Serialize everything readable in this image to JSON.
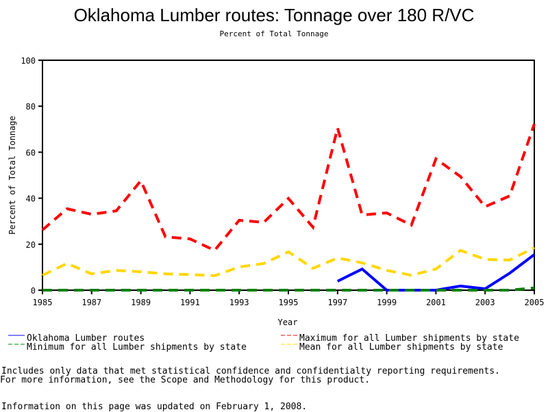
{
  "chart_data": {
    "type": "line",
    "title": "Oklahoma Lumber routes: Tonnage over 180 R/VC",
    "subtitle": "Percent of Total Tonnage",
    "xlabel": "Year",
    "ylabel": "Percent of Total Tonnage",
    "xlim": [
      1985,
      2005
    ],
    "ylim": [
      0,
      100
    ],
    "xticks": [
      "1985",
      "1987",
      "1989",
      "1991",
      "1993",
      "1995",
      "1997",
      "1999",
      "2001",
      "2003",
      "2005"
    ],
    "yticks": [
      "0",
      "20",
      "40",
      "60",
      "80",
      "100"
    ],
    "x": [
      1985,
      1986,
      1987,
      1988,
      1989,
      1990,
      1991,
      1992,
      1993,
      1994,
      1995,
      1996,
      1997,
      1998,
      1999,
      2000,
      2001,
      2002,
      2003,
      2004,
      2005
    ],
    "series": [
      {
        "name": "Oklahoma Lumber routes",
        "color": "#0000ff",
        "dash": false,
        "values": [
          null,
          null,
          null,
          null,
          null,
          null,
          null,
          null,
          null,
          null,
          null,
          null,
          3.9,
          9.2,
          0,
          0,
          0,
          1.8,
          0.6,
          7.4,
          15.5
        ]
      },
      {
        "name": "Maximum for all Lumber shipments by state",
        "color": "#ff0000",
        "dash": true,
        "values": [
          26.2,
          35.4,
          33,
          34.5,
          47.6,
          23.2,
          22.3,
          17.3,
          30.4,
          29.5,
          39.9,
          27.4,
          70.5,
          32.7,
          33.6,
          28.3,
          57.1,
          49.4,
          36.3,
          41,
          72.3
        ]
      },
      {
        "name": "Minimum for all Lumber shipments by state",
        "color": "#008000",
        "dash": true,
        "values": [
          0,
          0,
          0,
          0,
          0,
          0,
          0,
          0,
          0,
          0,
          0,
          0,
          0,
          0,
          0,
          0,
          0,
          0,
          0,
          0,
          1
        ]
      },
      {
        "name": "Mean for all Lumber shipments by state",
        "color": "#ffd700",
        "dash": true,
        "values": [
          6.5,
          11.6,
          7.1,
          8.6,
          8,
          7.1,
          6.8,
          6.3,
          10.1,
          11.6,
          16.7,
          9.5,
          14,
          11.9,
          8.6,
          6.5,
          9.2,
          17.3,
          13.4,
          13.1,
          18.5
        ]
      }
    ],
    "legend_position": "bottom"
  },
  "notes": {
    "line1": "Includes only data that met statistical confidence and confidentialty reporting requirements.",
    "line2": "For more information, see the Scope and Methodology for this product.",
    "updated": "Information on this page was updated on February 1, 2008."
  }
}
